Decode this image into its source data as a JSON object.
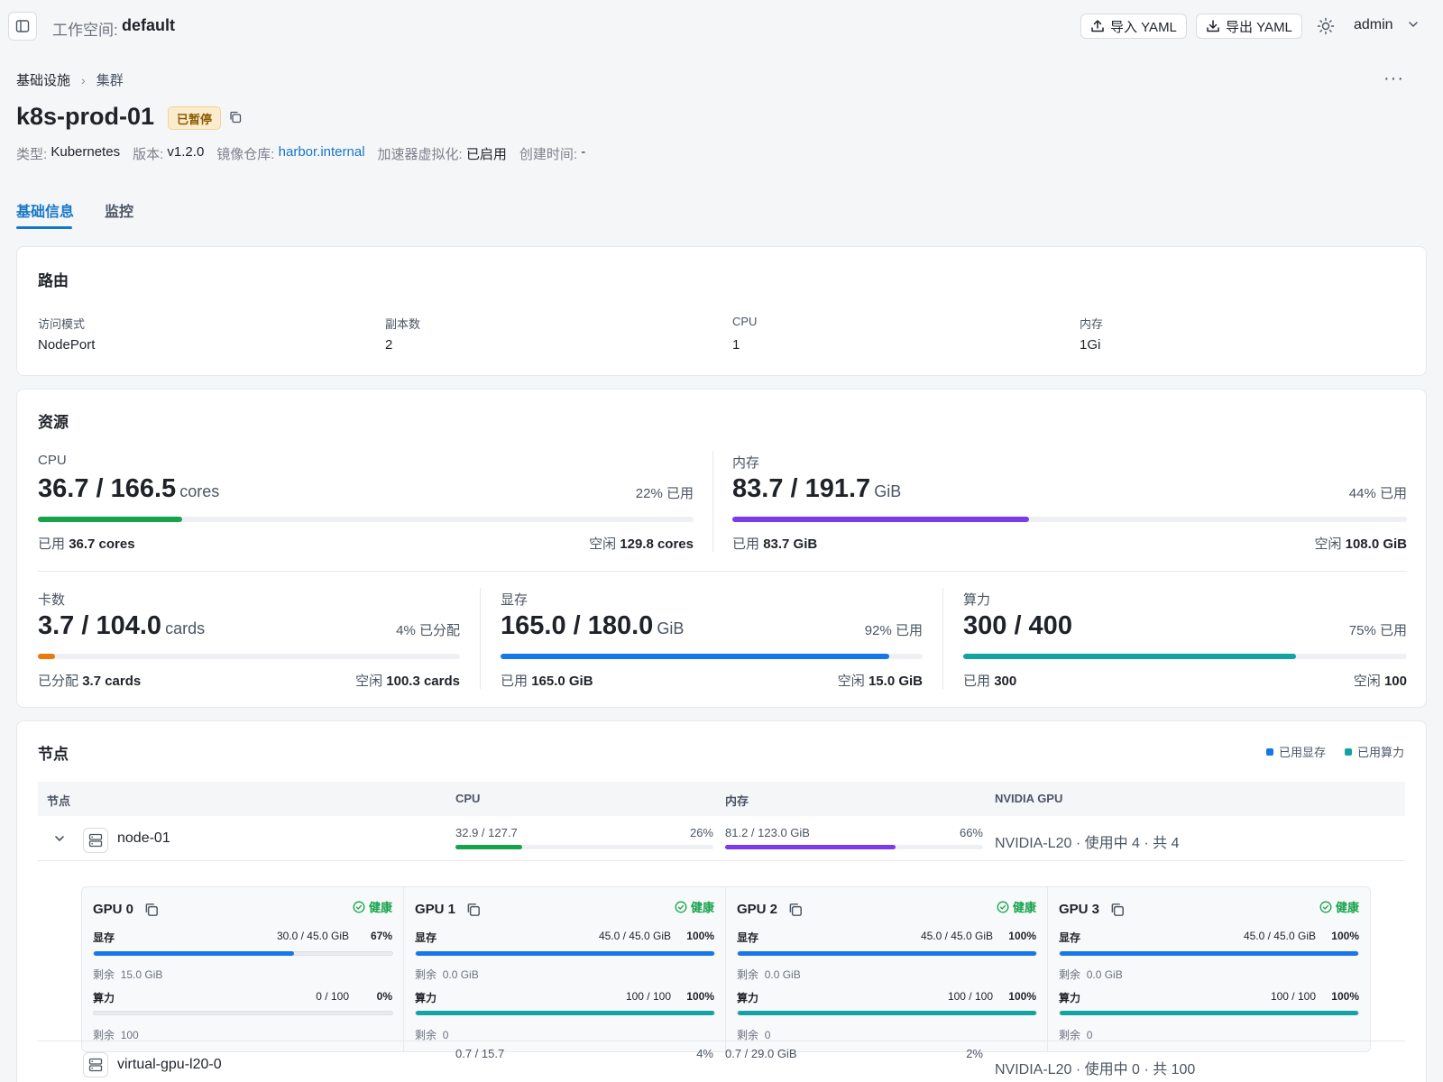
{
  "topbar": {
    "workspace_label": "工作空间:",
    "workspace_name": "default",
    "import_label": "导入 YAML",
    "export_label": "导出 YAML",
    "user": "admin"
  },
  "breadcrumb": {
    "parent": "基础设施",
    "current": "集群"
  },
  "title": "k8s-prod-01",
  "status": "已暂停",
  "meta": {
    "type_label": "类型:",
    "type": "Kubernetes",
    "version_label": "版本:",
    "version": "v1.2.0",
    "registry_label": "镜像仓库:",
    "registry": "harbor.internal",
    "accel_label": "加速器虚拟化:",
    "accel": "已启用",
    "created_label": "创建时间:",
    "created": "-"
  },
  "tabs": [
    {
      "label": "基础信息"
    },
    {
      "label": "监控"
    }
  ],
  "route": {
    "title": "路由",
    "fields": [
      {
        "label": "访问模式",
        "value": "NodePort"
      },
      {
        "label": "副本数",
        "value": "2"
      },
      {
        "label": "CPU",
        "value": "1"
      },
      {
        "label": "内存",
        "value": "1Gi"
      }
    ]
  },
  "resources": {
    "title": "资源",
    "items": [
      {
        "label": "CPU",
        "value": "36.7 / 166.5",
        "unit": "cores",
        "pct_text": "22% 已用",
        "fraction": 0.22,
        "color": "#16a34a",
        "used_prefix": "已用",
        "used": "36.7 cores",
        "free_prefix": "空闲",
        "free": "129.8 cores"
      },
      {
        "label": "内存",
        "value": "83.7 / 191.7",
        "unit": "GiB",
        "pct_text": "44% 已用",
        "fraction": 0.44,
        "color": "#7c3aed",
        "used_prefix": "已用",
        "used": "83.7 GiB",
        "free_prefix": "空闲",
        "free": "108.0 GiB"
      },
      {
        "label": "卡数",
        "value": "3.7 / 104.0",
        "unit": "cards",
        "pct_text": "4% 已分配",
        "fraction": 0.04,
        "color": "#ea7a0c",
        "used_prefix": "已分配",
        "used": "3.7 cards",
        "free_prefix": "空闲",
        "free": "100.3 cards"
      },
      {
        "label": "显存",
        "value": "165.0 / 180.0",
        "unit": "GiB",
        "pct_text": "92% 已用",
        "fraction": 0.92,
        "color": "#1677e8",
        "used_prefix": "已用",
        "used": "165.0 GiB",
        "free_prefix": "空闲",
        "free": "15.0 GiB"
      },
      {
        "label": "算力",
        "value": "300 / 400",
        "unit": "",
        "pct_text": "75% 已用",
        "fraction": 0.75,
        "color": "#14a3a3",
        "used_prefix": "已用",
        "used": "300",
        "free_prefix": "空闲",
        "free": "100"
      }
    ]
  },
  "nodes": {
    "title": "节点",
    "legend": [
      {
        "label": "已用显存",
        "color": "#1677e8"
      },
      {
        "label": "已用算力",
        "color": "#14a3a3"
      }
    ],
    "columns": [
      "节点",
      "CPU",
      "内存",
      "NVIDIA GPU"
    ],
    "rows": [
      {
        "name": "node-01",
        "cpu": "32.9 / 127.7",
        "cpu_pct": "26%",
        "cpu_fraction": 0.26,
        "mem": "81.2 / 123.0 GiB",
        "mem_pct": "66%",
        "mem_fraction": 0.66,
        "gpu": "NVIDIA-L20 · 使用中 4 · 共 4"
      },
      {
        "name": "virtual-gpu-l20-0",
        "cpu": "0.7 / 15.7",
        "cpu_pct": "4%",
        "cpu_fraction": 0.04,
        "mem": "0.7 / 29.0 GiB",
        "mem_pct": "2%",
        "mem_fraction": 0.02,
        "gpu": "NVIDIA-L20 · 使用中 0 · 共 100"
      }
    ],
    "gpus": [
      {
        "name": "GPU 0",
        "health": "健康",
        "mem_label": "显存",
        "mem": "30.0 / 45.0 GiB",
        "mem_pct": "67%",
        "mem_fraction": 0.67,
        "mem_rest_label": "剩余",
        "mem_rest": "15.0 GiB",
        "comp_label": "算力",
        "comp": "0 / 100",
        "comp_pct": "0%",
        "comp_fraction": 0.0,
        "comp_rest_label": "剩余",
        "comp_rest": "100"
      },
      {
        "name": "GPU 1",
        "health": "健康",
        "mem_label": "显存",
        "mem": "45.0 / 45.0 GiB",
        "mem_pct": "100%",
        "mem_fraction": 1.0,
        "mem_rest_label": "剩余",
        "mem_rest": "0.0 GiB",
        "comp_label": "算力",
        "comp": "100 / 100",
        "comp_pct": "100%",
        "comp_fraction": 1.0,
        "comp_rest_label": "剩余",
        "comp_rest": "0"
      },
      {
        "name": "GPU 2",
        "health": "健康",
        "mem_label": "显存",
        "mem": "45.0 / 45.0 GiB",
        "mem_pct": "100%",
        "mem_fraction": 1.0,
        "mem_rest_label": "剩余",
        "mem_rest": "0.0 GiB",
        "comp_label": "算力",
        "comp": "100 / 100",
        "comp_pct": "100%",
        "comp_fraction": 1.0,
        "comp_rest_label": "剩余",
        "comp_rest": "0"
      },
      {
        "name": "GPU 3",
        "health": "健康",
        "mem_label": "显存",
        "mem": "45.0 / 45.0 GiB",
        "mem_pct": "100%",
        "mem_fraction": 1.0,
        "mem_rest_label": "剩余",
        "mem_rest": "0.0 GiB",
        "comp_label": "算力",
        "comp": "100 / 100",
        "comp_pct": "100%",
        "comp_fraction": 1.0,
        "comp_rest_label": "剩余",
        "comp_rest": "0"
      }
    ]
  }
}
